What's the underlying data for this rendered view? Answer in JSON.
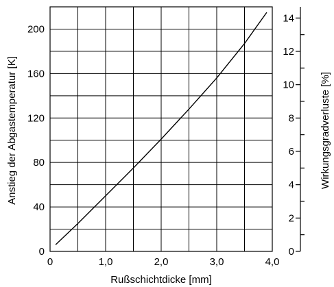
{
  "chart_data": {
    "type": "line",
    "xlabel": "Rußschichtdicke [mm]",
    "ylabel": "Anstieg der Abgastemperatur  [K]",
    "y2label": "Wirkungsgradverluste  [%]",
    "xlim": [
      0,
      4.0
    ],
    "ylim": [
      0,
      220
    ],
    "y2lim": [
      0,
      14.67
    ],
    "x_ticks": [
      "0",
      "1,0",
      "2,0",
      "3,0",
      "4,0"
    ],
    "y_ticks": [
      "0",
      "40",
      "80",
      "120",
      "160",
      "200"
    ],
    "y2_ticks": [
      "0",
      "2",
      "4",
      "6",
      "8",
      "10",
      "12",
      "14"
    ],
    "grid": true,
    "series": [
      {
        "x": [
          0.1,
          0.5,
          1.0,
          1.5,
          2.0,
          2.5,
          3.0,
          3.5,
          3.9
        ],
        "y": [
          6,
          25,
          50,
          75,
          101,
          128,
          156,
          187,
          215
        ]
      }
    ]
  }
}
